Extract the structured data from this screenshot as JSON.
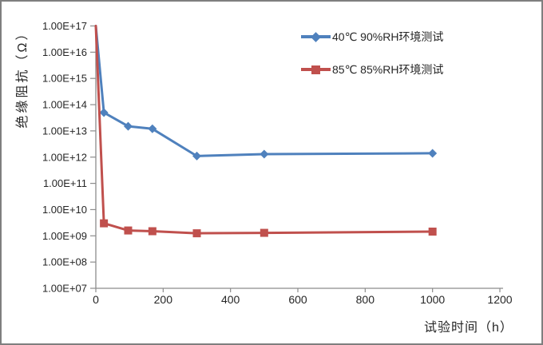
{
  "figure": {
    "border_color": "#7f7f7f",
    "background_color": "#ffffff",
    "axis_color": "#8c8c8c",
    "text_color": "#262626"
  },
  "chart_data": {
    "type": "line",
    "title": "",
    "xlabel": "试验时间（h）",
    "ylabel": "绝缘阻抗（Ω）",
    "grid": false,
    "legend_position": "top-right-inside",
    "x_axis": {
      "min": 0,
      "max": 1200,
      "ticks": [
        0,
        200,
        400,
        600,
        800,
        1000,
        1200
      ]
    },
    "y_axis": {
      "scale": "log",
      "min": 10000000.0,
      "max": 1e+17,
      "tick_labels": [
        "1.00E+17",
        "1.00E+16",
        "1.00E+15",
        "1.00E+14",
        "1.00E+13",
        "1.00E+12",
        "1.00E+11",
        "1.00E+10",
        "1.00E+09",
        "1.00E+08",
        "1.00E+07"
      ]
    },
    "series": [
      {
        "name": "40℃ 90%RH环境测试",
        "color": "#4F81BD",
        "marker": "diamond",
        "x": [
          0,
          24,
          96,
          168,
          300,
          500,
          1000
        ],
        "y": [
          1e+17,
          50000000000000.0,
          15000000000000.0,
          12000000000000.0,
          1100000000000.0,
          1300000000000.0,
          1400000000000.0
        ]
      },
      {
        "name": "85℃ 85%RH环境测试",
        "color": "#C0504D",
        "marker": "square",
        "x": [
          0,
          24,
          96,
          168,
          300,
          500,
          1000
        ],
        "y": [
          1e+17,
          3000000000.0,
          1600000000.0,
          1500000000.0,
          1250000000.0,
          1300000000.0,
          1450000000.0
        ]
      }
    ]
  }
}
